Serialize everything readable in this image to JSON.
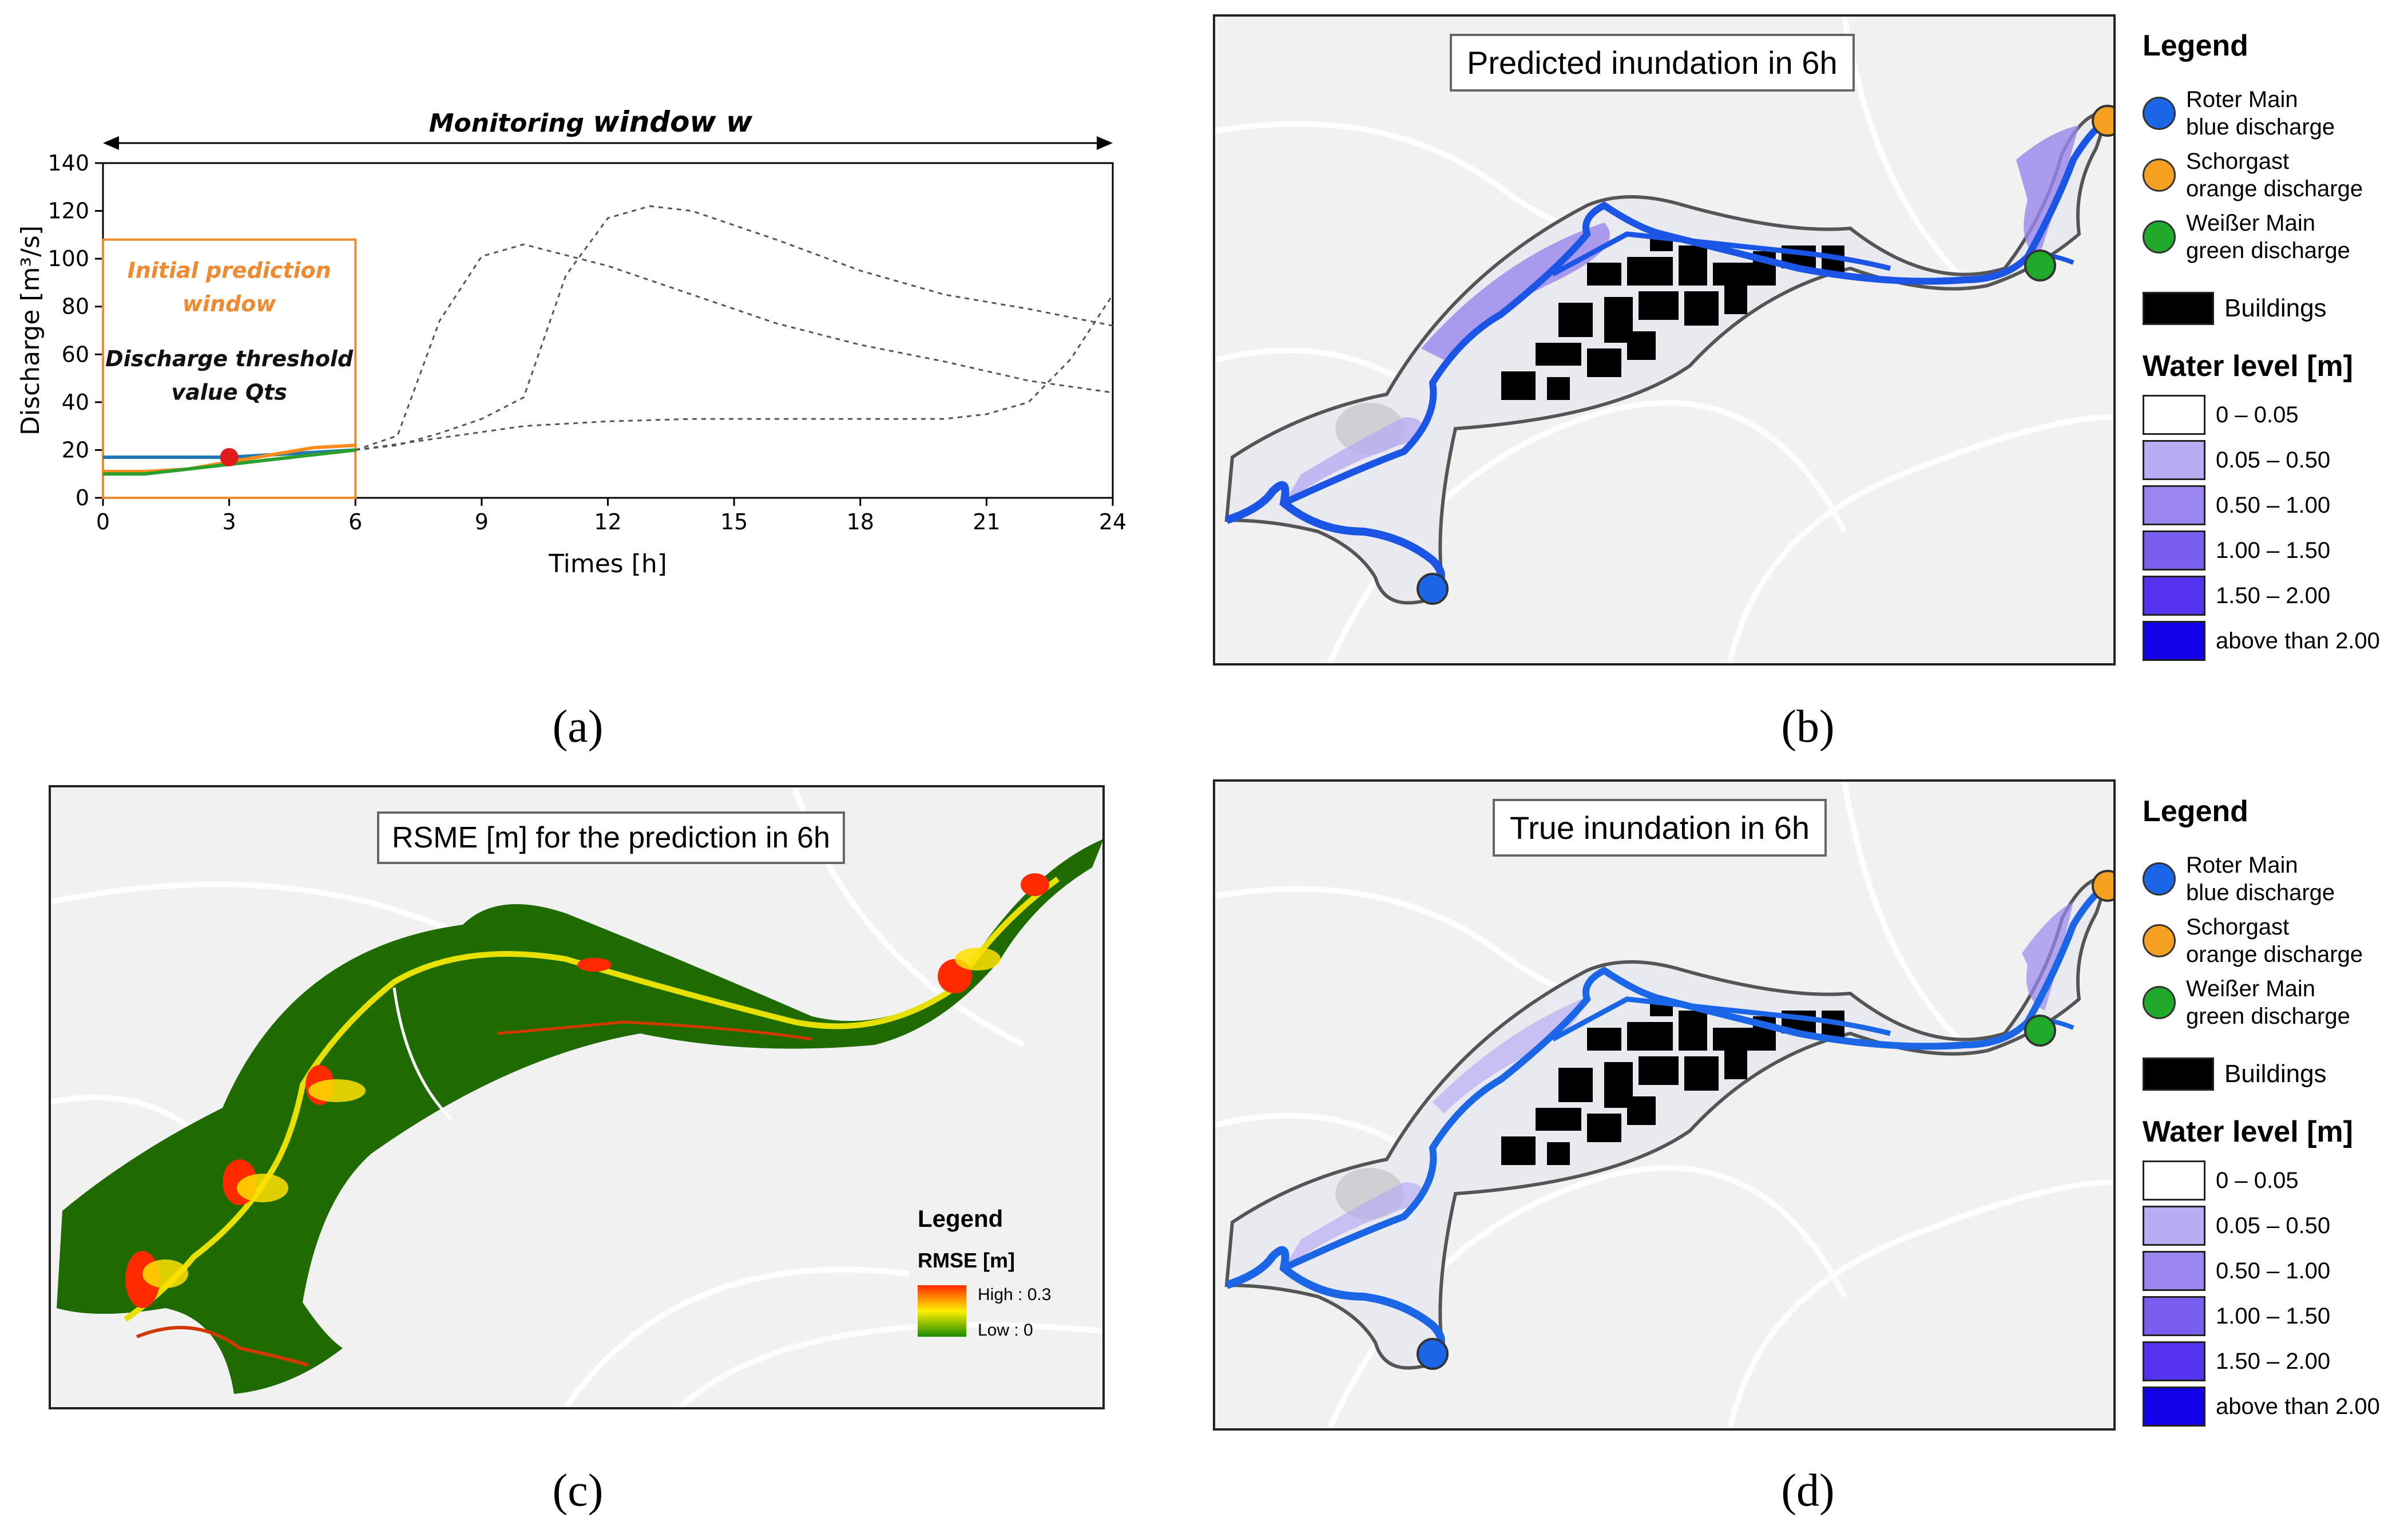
{
  "panel_a": {
    "caption": "(a)",
    "monitoring_label_italic": "Monitoring",
    "monitoring_label_bold": "window w",
    "initial_window_label": "Initial prediction window",
    "threshold_label": "Discharge threshold value Qts",
    "colors": {
      "blue": "#1f77b4",
      "orange": "#ff8c1a",
      "green": "#2ca02c",
      "marker": "#e31a1c",
      "box": "#f08a30"
    }
  },
  "chart_data": {
    "type": "line",
    "xlabel": "Times [h]",
    "ylabel": "Discharge [m³/s]",
    "xlim": [
      0,
      24
    ],
    "ylim": [
      0,
      140
    ],
    "xticks": [
      0,
      3,
      6,
      9,
      12,
      15,
      18,
      21,
      24
    ],
    "yticks": [
      0,
      20,
      40,
      60,
      80,
      100,
      120,
      140
    ],
    "grid": false,
    "series": [
      {
        "color": "blue",
        "style": "solid",
        "x": [
          0,
          2,
          3,
          4,
          5,
          6
        ],
        "y": [
          17,
          17,
          17,
          18,
          19,
          20
        ]
      },
      {
        "color": "orange",
        "style": "solid",
        "x": [
          0,
          1,
          2,
          3,
          4,
          5,
          6
        ],
        "y": [
          11,
          11,
          12,
          15,
          18,
          21,
          22
        ]
      },
      {
        "color": "green",
        "style": "solid",
        "x": [
          0,
          1,
          2,
          3,
          4,
          5,
          6
        ],
        "y": [
          10,
          10,
          12,
          14,
          16,
          18,
          20
        ]
      },
      {
        "color": "gray",
        "style": "dashed",
        "x": [
          6,
          7,
          8,
          9,
          10,
          12,
          14,
          16,
          18,
          20,
          22,
          24
        ],
        "y": [
          20,
          26,
          74,
          101,
          106,
          97,
          85,
          73,
          64,
          57,
          49,
          44
        ]
      },
      {
        "color": "gray",
        "style": "dashed",
        "x": [
          6,
          7,
          8,
          9,
          10,
          11,
          12,
          13,
          14,
          16,
          18,
          20,
          22,
          24
        ],
        "y": [
          20,
          22,
          27,
          33,
          42,
          93,
          117,
          122,
          120,
          108,
          95,
          85,
          79,
          72
        ]
      },
      {
        "color": "gray",
        "style": "dashed",
        "x": [
          6,
          8,
          10,
          12,
          14,
          16,
          18,
          20,
          21,
          22,
          23,
          24
        ],
        "y": [
          20,
          25,
          30,
          32,
          33,
          33,
          33,
          33,
          35,
          40,
          58,
          85
        ]
      }
    ],
    "points": [
      {
        "x": 3,
        "y": 17,
        "color": "marker"
      }
    ]
  },
  "panel_b": {
    "caption": "(b)",
    "title": "Predicted inundation in 6h"
  },
  "panel_c": {
    "caption": "(c)",
    "title": "RSME [m] for the prediction in 6h",
    "legend_title": "Legend",
    "legend_sub": "RMSE [m]",
    "high_label": "High : 0.3",
    "low_label": "Low : 0",
    "colors": {
      "base": "#1f6b00",
      "high": "#ff2a00",
      "mid": "#ffee00",
      "low": "#1a8c00"
    }
  },
  "panel_d": {
    "caption": "(d)",
    "title": "True inundation in 6h"
  },
  "map_legend": {
    "title": "Legend",
    "gauges": [
      {
        "line1": "Roter Main",
        "line2": "blue discharge",
        "color": "#1a66e6"
      },
      {
        "line1": "Schorgast",
        "line2": "orange discharge",
        "color": "#f5a020"
      },
      {
        "line1": "Weißer Main",
        "line2": "green discharge",
        "color": "#1faa2a"
      }
    ],
    "buildings_label": "Buildings",
    "water_title": "Water level [m]",
    "water_classes": [
      {
        "label": "0 – 0.05",
        "color": "#ffffff"
      },
      {
        "label": "0.05 – 0.50",
        "color": "#b9acf2"
      },
      {
        "label": "0.50 – 1.00",
        "color": "#9a86ee"
      },
      {
        "label": "1.00 – 1.50",
        "color": "#7a5ef0"
      },
      {
        "label": "1.50 – 2.00",
        "color": "#5533ee"
      },
      {
        "label": "above than 2.00",
        "color": "#1200e6"
      }
    ]
  }
}
